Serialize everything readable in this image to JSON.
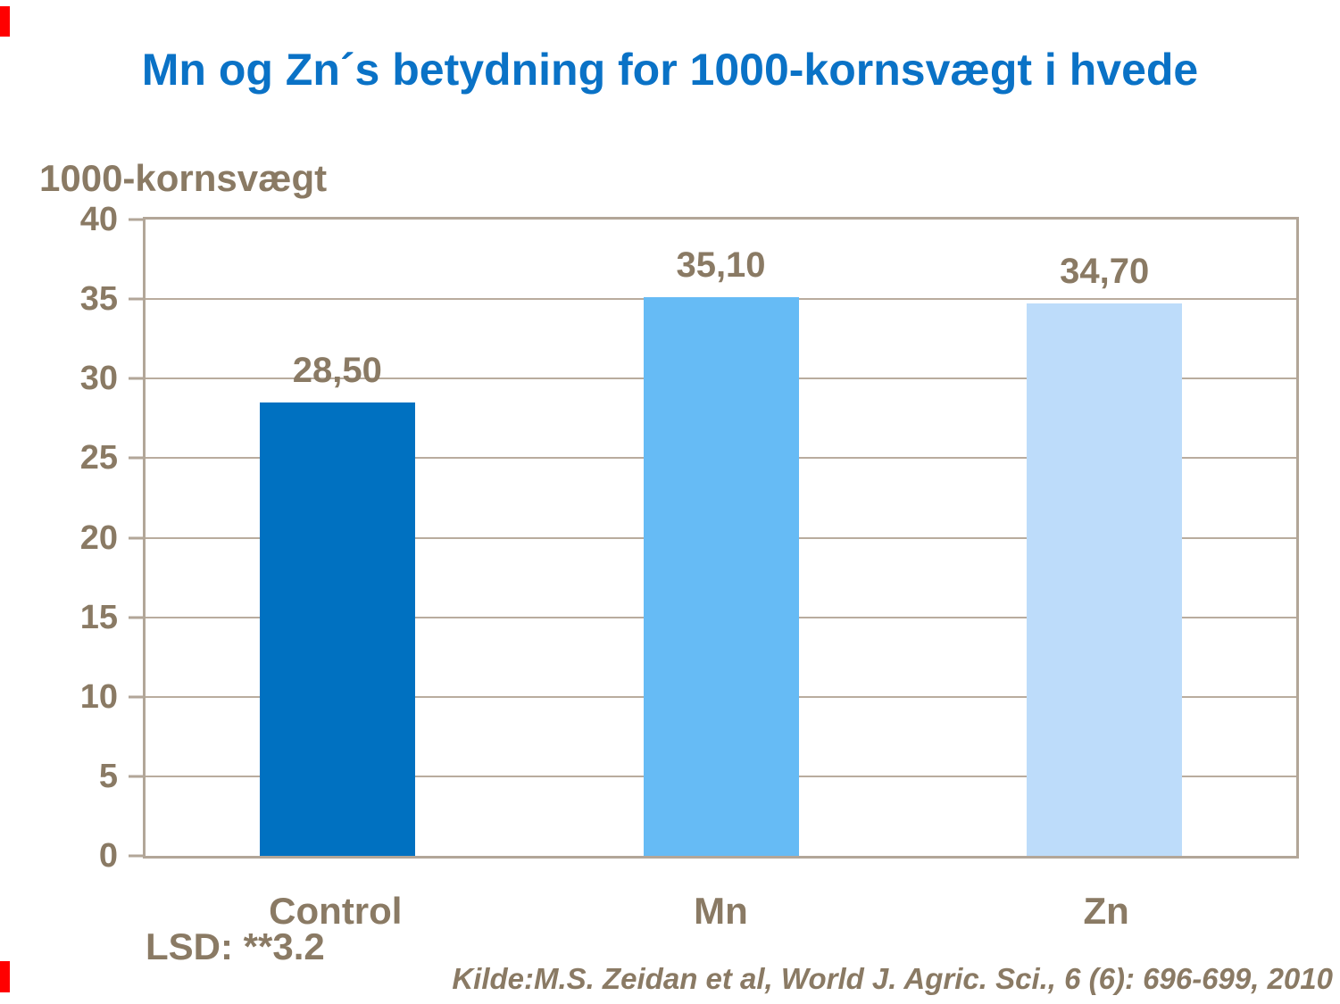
{
  "slide": {
    "title": "Mn og Zn´s betydning for 1000-kornsvægt i hvede"
  },
  "colors": {
    "title_blue": "#0a72c6",
    "text_brown": "#8a7a64",
    "frame_tan": "#b2a698",
    "gridline_tan": "#b9ac9e",
    "edge_red": "#ff0000"
  },
  "chart_data": {
    "type": "bar",
    "title": "Mn og Zn´s betydning for 1000-kornsvægt i hvede",
    "ylabel": "1000-kornsvægt",
    "xlabel": "",
    "categories": [
      "Control",
      "Mn",
      "Zn"
    ],
    "values": [
      28.5,
      35.1,
      34.7
    ],
    "value_labels": [
      "28,50",
      "35,10",
      "34,70"
    ],
    "ylim": [
      0,
      40
    ],
    "yticks": [
      0,
      5,
      10,
      15,
      20,
      25,
      30,
      35,
      40
    ],
    "grid": true,
    "legend": "none",
    "bar_colors": [
      "#0071c1",
      "#66bbf5",
      "#bddcfa"
    ],
    "lsd_note": "LSD: **3.2",
    "source_note": "Kilde:M.S. Zeidan et al, World J. Agric. Sci., 6 (6): 696-699, 2010"
  }
}
